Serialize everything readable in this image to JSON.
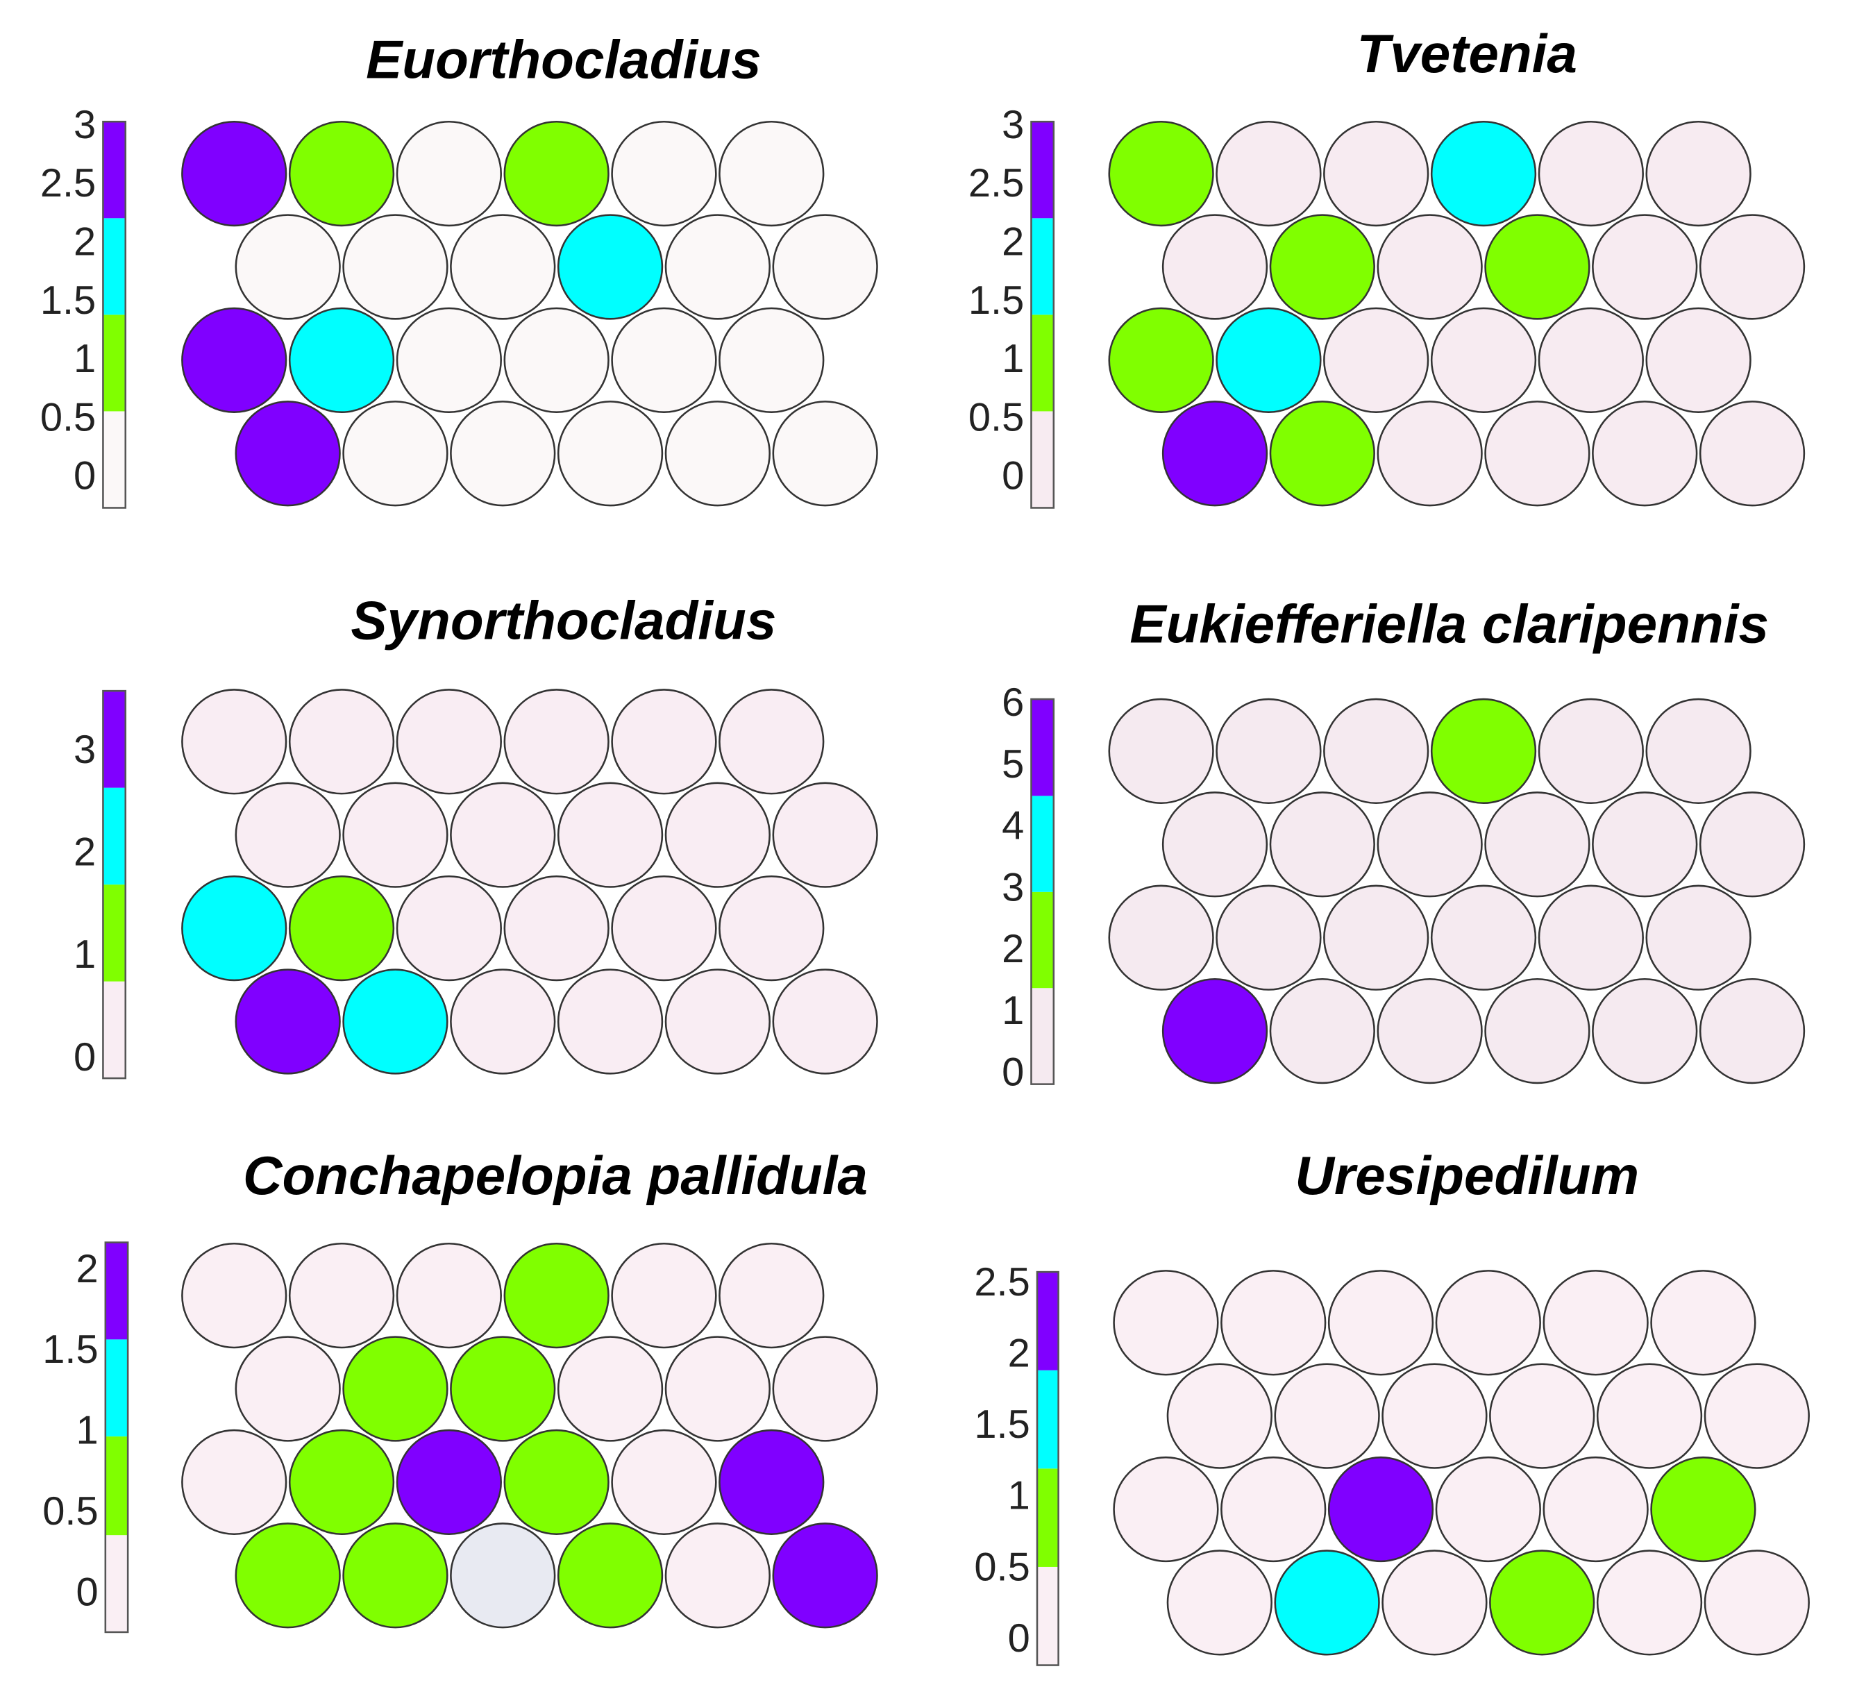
{
  "chart_data": [
    {
      "type": "som",
      "title": "Euorthocladius",
      "ylim": [
        -0.25,
        3.05
      ],
      "yticks": [
        0,
        0.5,
        1,
        1.5,
        2,
        2.5,
        3
      ],
      "bins": [
        -0.25,
        0.575,
        1.4,
        2.225,
        3.05
      ],
      "colors": [
        "#fbf8f8",
        "#80ff00",
        "#00ffff",
        "#8000ff"
      ],
      "values": [
        [
          3,
          1,
          0,
          1,
          0,
          0
        ],
        [
          0,
          0,
          0,
          2,
          0,
          0
        ],
        [
          3,
          2,
          0,
          0,
          0,
          0
        ],
        [
          3,
          0,
          0,
          0,
          0,
          0
        ]
      ]
    },
    {
      "type": "som",
      "title": "Tvetenia",
      "ylim": [
        -0.25,
        3.05
      ],
      "yticks": [
        0,
        0.5,
        1,
        1.5,
        2,
        2.5,
        3
      ],
      "bins": [
        -0.25,
        0.575,
        1.4,
        2.225,
        3.05
      ],
      "colors": [
        "#f7ebf1",
        "#80ff00",
        "#00ffff",
        "#8000ff"
      ],
      "values": [
        [
          1,
          0,
          0,
          2,
          0,
          0
        ],
        [
          0,
          1,
          0,
          1,
          0,
          0
        ],
        [
          1,
          2,
          0,
          0,
          0,
          0
        ],
        [
          3,
          1,
          0,
          0,
          0,
          0
        ]
      ]
    },
    {
      "type": "som",
      "title": "Synorthocladius",
      "ylim": [
        -0.18,
        3.6
      ],
      "yticks": [
        0,
        1,
        2,
        3
      ],
      "bins": [
        -0.18,
        0.765,
        1.71,
        2.655,
        3.6
      ],
      "colors": [
        "#f9edf3",
        "#80ff00",
        "#00ffff",
        "#8000ff"
      ],
      "values": [
        [
          0,
          0,
          0,
          0,
          0,
          0
        ],
        [
          0,
          0,
          0,
          0,
          0,
          0
        ],
        [
          2,
          1,
          0,
          0,
          0,
          0
        ],
        [
          3,
          2,
          0,
          0,
          0,
          0
        ]
      ]
    },
    {
      "type": "som",
      "title": "Eukiefferiella claripennis",
      "ylim": [
        -0.15,
        6.1
      ],
      "yticks": [
        0,
        1,
        2,
        3,
        4,
        5,
        6
      ],
      "bins": [
        -0.15,
        1.41,
        2.97,
        4.53,
        6.1
      ],
      "colors": [
        "#f5eaf0",
        "#80ff00",
        "#00ffff",
        "#8000ff"
      ],
      "values": [
        [
          0,
          0,
          0,
          2,
          0,
          0
        ],
        [
          0,
          0,
          0,
          0,
          0,
          0
        ],
        [
          0,
          0,
          0,
          0,
          0,
          0
        ],
        [
          6,
          0,
          0,
          0,
          0,
          0
        ]
      ]
    },
    {
      "type": "som",
      "title": "Conchapelopia pallidula",
      "ylim": [
        -0.23,
        2.18
      ],
      "yticks": [
        0,
        0.5,
        1,
        1.5,
        2
      ],
      "bins": [
        -0.23,
        0.37,
        0.98,
        1.58,
        2.18
      ],
      "colors": [
        "#faeff4",
        "#80ff00",
        "#00ffff",
        "#8000ff"
      ],
      "empty_color": "#e8eaf2",
      "values": [
        [
          0,
          0,
          0,
          0.7,
          0,
          0
        ],
        [
          0,
          0.7,
          0.7,
          0,
          0,
          0
        ],
        [
          0,
          0.7,
          2,
          0.7,
          0,
          2
        ],
        [
          0.7,
          0.7,
          null,
          0.7,
          0,
          2
        ]
      ]
    },
    {
      "type": "som",
      "title": "Uresipedilum",
      "ylim": [
        -0.17,
        2.59
      ],
      "yticks": [
        0,
        0.5,
        1,
        1.5,
        2,
        2.5
      ],
      "bins": [
        -0.17,
        0.52,
        1.21,
        1.9,
        2.59
      ],
      "colors": [
        "#faeff4",
        "#80ff00",
        "#00ffff",
        "#8000ff"
      ],
      "values": [
        [
          0,
          0,
          0,
          0,
          0,
          0
        ],
        [
          0,
          0,
          0,
          0,
          0,
          0
        ],
        [
          0,
          0,
          2,
          0,
          0,
          1
        ],
        [
          0,
          1.5,
          0,
          1,
          0,
          0
        ]
      ]
    }
  ]
}
